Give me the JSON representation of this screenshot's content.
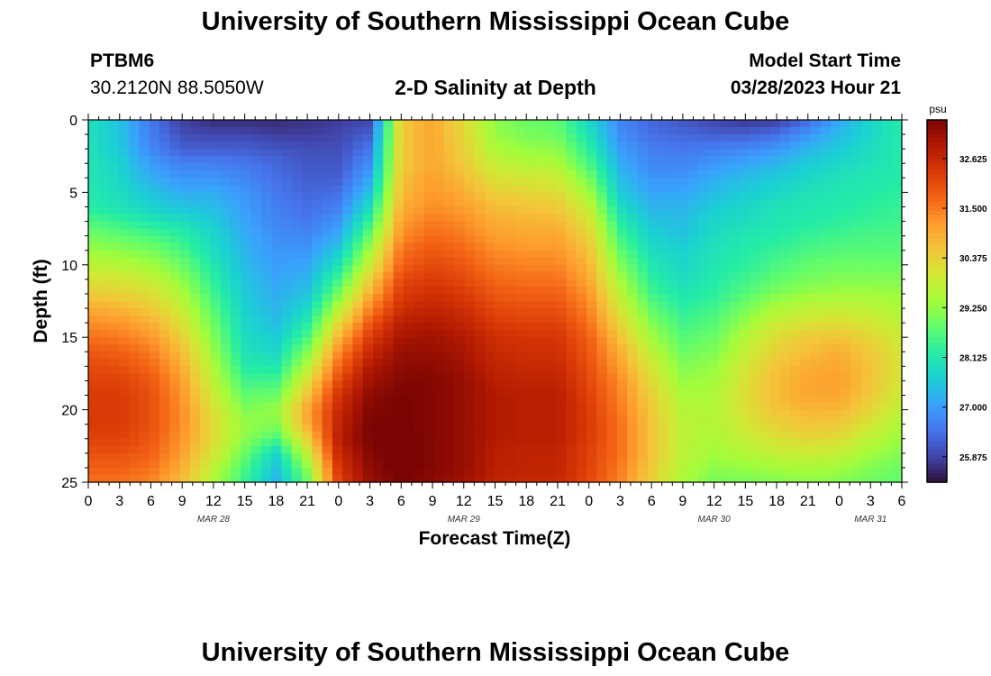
{
  "header": {
    "title": "University of Southern Mississippi Ocean Cube",
    "station_id": "PTBM6",
    "coordinates": "30.2120N  88.5050W",
    "model_start_label": "Model Start Time",
    "model_start_value": "03/28/2023 Hour 21"
  },
  "footer": {
    "title": "University of Southern Mississippi Ocean Cube"
  },
  "chart_data": {
    "type": "heatmap",
    "title": "2-D Salinity at Depth",
    "xlabel": "Forecast Time(Z)",
    "ylabel": "Depth (ft)",
    "colorbar_unit": "psu",
    "xlim_hours": [
      0,
      78
    ],
    "ylim": [
      25,
      0
    ],
    "x_tick_labels": [
      "0",
      "3",
      "6",
      "9",
      "12",
      "15",
      "18",
      "21",
      "0",
      "3",
      "6",
      "9",
      "12",
      "15",
      "18",
      "21",
      "0",
      "3",
      "6",
      "9",
      "12",
      "15",
      "18",
      "21",
      "0",
      "3",
      "6"
    ],
    "y_ticks": [
      0,
      5,
      10,
      15,
      20,
      25
    ],
    "date_labels": [
      {
        "hour": 12,
        "label": "MAR 28"
      },
      {
        "hour": 36,
        "label": "MAR 29"
      },
      {
        "hour": 60,
        "label": "MAR 30"
      },
      {
        "hour": 75,
        "label": "MAR 31"
      }
    ],
    "colorbar_ticks": [
      "32.625",
      "31.500",
      "30.375",
      "29.250",
      "28.125",
      "27.000",
      "25.875"
    ],
    "colorbar_range": [
      25.3,
      33.5
    ],
    "colormap": [
      "#30123b",
      "#4145ab",
      "#4675ed",
      "#39a2fc",
      "#1bcfd4",
      "#24eca6",
      "#61fc6c",
      "#a4fc3b",
      "#d1e834",
      "#f3c63a",
      "#fe9b2d",
      "#f36315",
      "#d93806",
      "#b11901",
      "#7a0403"
    ],
    "salinity_grid_note": "rows = depth 0..25 ft (step 1 ft), cols = forecast hour 0..78 (step 3 h)",
    "depth_step_ft": 1,
    "hour_step": 3,
    "salinity_grid": [
      [
        28.0,
        27.5,
        26.5,
        25.8,
        25.6,
        25.6,
        25.6,
        25.7,
        25.8,
        25.9,
        30.5,
        31.0,
        30.2,
        29.2,
        28.9,
        28.8,
        27.8,
        26.7,
        26.3,
        26.1,
        25.9,
        25.7,
        25.8,
        26.3,
        27.1,
        27.8,
        28.2
      ],
      [
        28.0,
        27.5,
        26.6,
        26.0,
        25.9,
        25.9,
        25.8,
        25.8,
        25.9,
        26.2,
        30.5,
        31.0,
        30.3,
        29.3,
        29.0,
        28.9,
        28.0,
        26.8,
        26.4,
        26.3,
        26.2,
        26.2,
        26.4,
        26.9,
        27.4,
        27.8,
        28.2
      ],
      [
        28.0,
        27.6,
        26.7,
        26.2,
        26.2,
        26.2,
        26.1,
        26.0,
        26.0,
        26.5,
        30.5,
        31.0,
        30.4,
        29.5,
        29.3,
        29.2,
        28.3,
        27.0,
        26.6,
        26.5,
        26.6,
        26.7,
        26.9,
        27.3,
        27.6,
        27.9,
        28.2
      ],
      [
        28.1,
        27.7,
        27.0,
        26.6,
        26.6,
        26.5,
        26.3,
        26.1,
        26.1,
        26.8,
        30.5,
        31.0,
        30.5,
        29.8,
        29.6,
        29.5,
        28.6,
        27.2,
        26.7,
        26.7,
        26.9,
        27.1,
        27.3,
        27.6,
        27.8,
        28.0,
        28.2
      ],
      [
        28.1,
        27.8,
        27.2,
        26.9,
        26.9,
        26.7,
        26.4,
        26.2,
        26.2,
        27.1,
        30.6,
        31.1,
        30.7,
        30.1,
        30.0,
        29.9,
        29.0,
        27.4,
        26.9,
        26.9,
        27.2,
        27.4,
        27.6,
        27.8,
        28.0,
        28.1,
        28.2
      ],
      [
        28.2,
        27.9,
        27.5,
        27.2,
        27.2,
        26.9,
        26.5,
        26.3,
        26.4,
        27.5,
        30.7,
        31.2,
        30.9,
        30.4,
        30.3,
        30.2,
        29.4,
        27.6,
        27.1,
        27.1,
        27.4,
        27.6,
        27.8,
        28.0,
        28.1,
        28.2,
        28.3
      ],
      [
        28.2,
        28.0,
        27.7,
        27.5,
        27.4,
        27.0,
        26.6,
        26.4,
        26.6,
        27.9,
        30.9,
        31.3,
        31.1,
        30.7,
        30.6,
        30.5,
        29.8,
        27.9,
        27.3,
        27.3,
        27.6,
        27.8,
        28.0,
        28.1,
        28.2,
        28.3,
        28.4
      ],
      [
        28.6,
        28.4,
        28.1,
        27.9,
        27.6,
        27.1,
        26.7,
        26.5,
        26.9,
        28.4,
        31.1,
        31.5,
        31.3,
        30.9,
        30.8,
        30.8,
        30.1,
        28.2,
        27.5,
        27.4,
        27.8,
        27.9,
        28.1,
        28.2,
        28.3,
        28.4,
        28.5
      ],
      [
        29.0,
        28.8,
        28.6,
        28.3,
        27.8,
        27.2,
        26.8,
        26.7,
        27.2,
        28.9,
        31.3,
        31.7,
        31.5,
        31.1,
        31.0,
        31.0,
        30.4,
        28.5,
        27.7,
        27.5,
        27.9,
        28.1,
        28.2,
        28.4,
        28.5,
        28.6,
        28.6
      ],
      [
        29.3,
        29.2,
        29.0,
        28.6,
        27.9,
        27.3,
        26.9,
        26.9,
        27.6,
        29.4,
        31.6,
        31.9,
        31.7,
        31.3,
        31.2,
        31.2,
        30.6,
        28.8,
        27.9,
        27.7,
        28.0,
        28.2,
        28.4,
        28.6,
        28.7,
        28.7,
        28.7
      ],
      [
        29.7,
        29.6,
        29.4,
        28.9,
        28.1,
        27.4,
        27.0,
        27.1,
        28.0,
        29.9,
        31.8,
        32.1,
        31.9,
        31.5,
        31.4,
        31.4,
        30.8,
        29.1,
        28.1,
        27.8,
        28.1,
        28.3,
        28.6,
        28.8,
        28.9,
        28.9,
        28.9
      ],
      [
        30.1,
        30.0,
        29.8,
        29.2,
        28.3,
        27.5,
        27.1,
        27.3,
        28.5,
        30.4,
        32.1,
        32.3,
        32.1,
        31.7,
        31.6,
        31.6,
        31.0,
        29.4,
        28.3,
        27.9,
        28.2,
        28.5,
        28.8,
        29.0,
        29.1,
        29.1,
        29.1
      ],
      [
        30.5,
        30.4,
        30.2,
        29.5,
        28.5,
        27.6,
        27.2,
        27.5,
        29.0,
        30.9,
        32.3,
        32.5,
        32.3,
        31.9,
        31.8,
        31.8,
        31.2,
        29.7,
        28.5,
        28.1,
        28.3,
        28.7,
        29.1,
        29.3,
        29.4,
        29.4,
        29.3
      ],
      [
        30.9,
        30.8,
        30.5,
        29.8,
        28.7,
        27.7,
        27.3,
        27.8,
        29.6,
        31.4,
        32.5,
        32.7,
        32.5,
        32.1,
        32.0,
        32.0,
        31.4,
        30.0,
        28.8,
        28.3,
        28.5,
        29.0,
        29.5,
        29.7,
        29.8,
        29.7,
        29.5
      ],
      [
        31.3,
        31.2,
        30.9,
        30.1,
        28.9,
        27.8,
        27.4,
        28.2,
        30.2,
        31.9,
        32.8,
        32.9,
        32.7,
        32.3,
        32.2,
        32.2,
        31.6,
        30.3,
        29.1,
        28.5,
        28.7,
        29.3,
        29.9,
        30.1,
        30.2,
        30.0,
        29.7
      ],
      [
        31.6,
        31.5,
        31.2,
        30.4,
        29.1,
        27.9,
        27.6,
        28.6,
        30.8,
        32.3,
        33.0,
        33.1,
        32.9,
        32.5,
        32.4,
        32.4,
        31.8,
        30.6,
        29.4,
        28.7,
        28.9,
        29.6,
        30.2,
        30.5,
        30.6,
        30.3,
        29.9
      ],
      [
        31.9,
        31.8,
        31.5,
        30.7,
        29.3,
        28.0,
        27.8,
        29.1,
        31.3,
        32.6,
        33.2,
        33.2,
        33.0,
        32.6,
        32.5,
        32.5,
        31.9,
        30.9,
        29.7,
        28.9,
        29.1,
        29.8,
        30.4,
        30.7,
        30.9,
        30.5,
        30.0
      ],
      [
        32.1,
        32.0,
        31.7,
        30.9,
        29.5,
        28.2,
        28.1,
        29.6,
        31.7,
        32.9,
        33.3,
        33.3,
        33.1,
        32.7,
        32.6,
        32.6,
        32.0,
        31.1,
        30.0,
        29.1,
        29.3,
        30.0,
        30.6,
        30.9,
        31.0,
        30.6,
        30.0
      ],
      [
        32.2,
        32.2,
        31.9,
        31.1,
        29.7,
        28.5,
        28.5,
        30.1,
        32.1,
        33.1,
        33.4,
        33.4,
        33.2,
        32.8,
        32.7,
        32.7,
        32.1,
        31.3,
        30.2,
        29.3,
        29.4,
        30.1,
        30.7,
        31.0,
        31.1,
        30.6,
        30.0
      ],
      [
        32.3,
        32.3,
        32.0,
        31.2,
        29.9,
        28.8,
        28.9,
        30.6,
        32.4,
        33.3,
        33.5,
        33.4,
        33.2,
        32.9,
        32.8,
        32.8,
        32.2,
        31.4,
        30.4,
        29.5,
        29.5,
        30.2,
        30.7,
        31.0,
        31.0,
        30.5,
        29.9
      ],
      [
        32.3,
        32.3,
        32.0,
        31.3,
        30.1,
        29.1,
        29.3,
        31.0,
        32.6,
        33.4,
        33.5,
        33.4,
        33.2,
        32.9,
        32.8,
        32.8,
        32.3,
        31.5,
        30.5,
        29.6,
        29.6,
        30.1,
        30.6,
        30.8,
        30.8,
        30.3,
        29.7
      ],
      [
        32.3,
        32.3,
        32.0,
        31.3,
        30.2,
        29.3,
        29.1,
        30.9,
        32.7,
        33.5,
        33.5,
        33.4,
        33.2,
        32.9,
        32.8,
        32.8,
        32.3,
        31.6,
        30.6,
        29.7,
        29.6,
        30.0,
        30.4,
        30.6,
        30.5,
        30.0,
        29.5
      ],
      [
        32.2,
        32.2,
        31.9,
        31.2,
        30.2,
        29.2,
        28.6,
        30.4,
        32.8,
        33.5,
        33.6,
        33.4,
        33.2,
        32.9,
        32.8,
        32.8,
        32.3,
        31.6,
        30.6,
        29.7,
        29.5,
        29.8,
        30.1,
        30.3,
        30.2,
        29.7,
        29.3
      ],
      [
        32.0,
        32.0,
        31.8,
        31.1,
        30.0,
        28.9,
        27.8,
        29.8,
        32.6,
        33.4,
        33.6,
        33.4,
        33.2,
        32.8,
        32.7,
        32.7,
        32.2,
        31.6,
        30.6,
        29.7,
        29.4,
        29.6,
        29.8,
        29.9,
        29.8,
        29.4,
        29.1
      ],
      [
        31.8,
        31.8,
        31.6,
        30.9,
        29.7,
        28.6,
        27.5,
        29.2,
        32.4,
        33.3,
        33.6,
        33.4,
        33.2,
        32.8,
        32.7,
        32.7,
        32.2,
        31.5,
        30.5,
        29.6,
        29.2,
        29.3,
        29.4,
        29.5,
        29.4,
        29.1,
        28.9
      ],
      [
        31.6,
        31.6,
        31.4,
        30.7,
        29.5,
        28.4,
        27.3,
        28.9,
        32.2,
        33.2,
        33.5,
        33.3,
        33.1,
        32.7,
        32.6,
        32.6,
        32.1,
        31.4,
        30.4,
        29.5,
        29.0,
        29.0,
        29.1,
        29.2,
        29.1,
        28.9,
        28.8
      ]
    ]
  }
}
